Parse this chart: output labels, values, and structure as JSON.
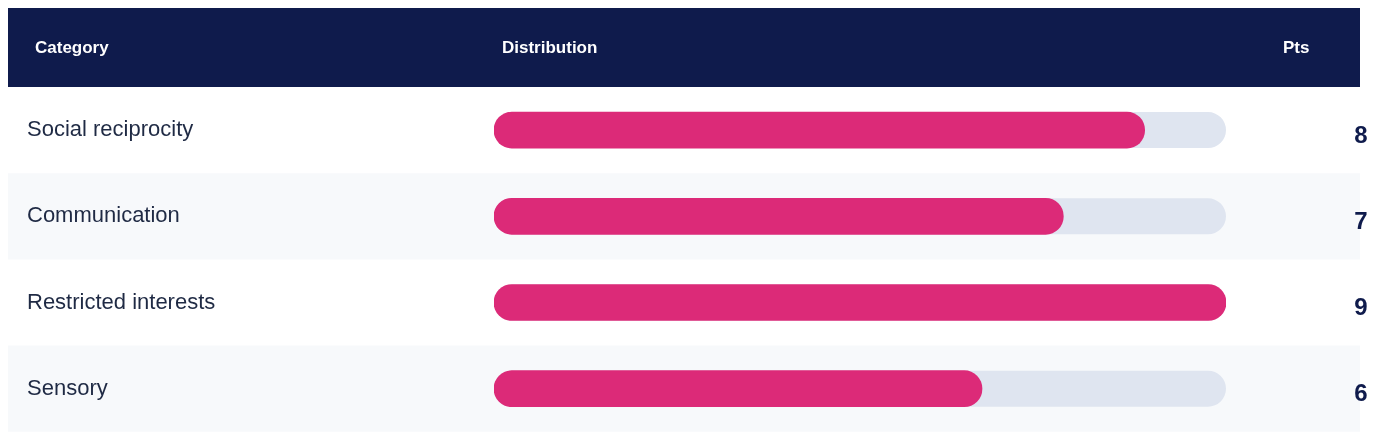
{
  "chart_data": {
    "type": "bar",
    "orientation": "horizontal",
    "ylabel": "Category",
    "xlabel": "Distribution",
    "y2label": "Pts",
    "categories": [
      "Social reciprocity",
      "Communication",
      "Restricted interests",
      "Sensory"
    ],
    "values": [
      8,
      7,
      9,
      6
    ],
    "color": "#dc2a78",
    "xlim": [
      0,
      9
    ],
    "data_labels": true,
    "tick_labels": "y",
    "legend": false,
    "grid": false
  }
}
